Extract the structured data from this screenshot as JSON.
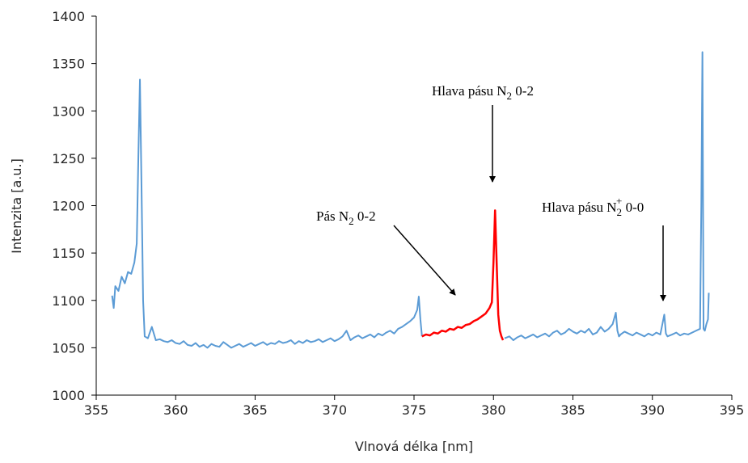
{
  "chart_data": {
    "type": "line",
    "xlabel": "Vlnová délka [nm]",
    "ylabel": "Intenzita [a.u.]",
    "xlim": [
      355,
      395
    ],
    "xticks": [
      355,
      360,
      365,
      370,
      375,
      380,
      385,
      390,
      395
    ],
    "ylim": [
      1000,
      1400
    ],
    "yticks": [
      1000,
      1050,
      1100,
      1150,
      1200,
      1250,
      1300,
      1350,
      1400
    ],
    "grid": false,
    "annotations": [
      {
        "before": "Pás N",
        "sub": "2",
        "after": " 0-2"
      },
      {
        "before": "Hlava pásu N",
        "sub": "2",
        "after": " 0-2"
      },
      {
        "before": "Hlava pásu N",
        "sub": "2",
        "sup": "+",
        "after": " 0-0"
      }
    ],
    "series": [
      {
        "color": "#5b9bd5",
        "x": [
          356.0,
          356.1,
          356.2,
          356.4,
          356.6,
          356.8,
          357.0,
          357.2,
          357.4,
          357.55,
          357.65,
          357.75,
          357.85,
          357.95,
          358.05,
          358.25,
          358.5,
          358.75,
          359.0,
          359.25,
          359.5,
          359.75,
          360.0,
          360.25,
          360.5,
          360.75,
          361.0,
          361.25,
          361.5,
          361.75,
          362.0,
          362.25,
          362.5,
          362.75,
          363.0,
          363.25,
          363.5,
          363.75,
          364.0,
          364.25,
          364.5,
          364.75,
          365.0,
          365.25,
          365.5,
          365.75,
          366.0,
          366.25,
          366.5,
          366.75,
          367.0,
          367.25,
          367.5,
          367.75,
          368.0,
          368.25,
          368.5,
          368.75,
          369.0,
          369.25,
          369.5,
          369.75,
          370.0,
          370.25,
          370.5,
          370.75,
          371.0,
          371.25,
          371.5,
          371.75,
          372.0,
          372.25,
          372.5,
          372.75,
          373.0,
          373.25,
          373.5,
          373.75,
          374.0,
          374.25,
          374.5,
          374.75,
          375.0,
          375.2,
          375.3,
          375.4,
          375.5,
          378.0,
          380.7,
          381.0,
          381.25,
          381.5,
          381.75,
          382.0,
          382.25,
          382.5,
          382.75,
          383.0,
          383.25,
          383.5,
          383.75,
          384.0,
          384.25,
          384.5,
          384.75,
          385.0,
          385.25,
          385.5,
          385.75,
          386.0,
          386.25,
          386.5,
          386.75,
          387.0,
          387.25,
          387.5,
          387.7,
          387.8,
          387.9,
          388.0,
          388.25,
          388.5,
          388.75,
          389.0,
          389.25,
          389.5,
          389.75,
          390.0,
          390.25,
          390.5,
          390.75,
          390.85,
          390.95,
          391.25,
          391.5,
          391.75,
          392.0,
          392.25,
          392.5,
          392.75,
          393.0,
          393.08,
          393.15,
          393.22,
          393.3,
          393.4,
          393.5,
          393.55
        ],
        "values": [
          1105,
          1092,
          1115,
          1110,
          1125,
          1118,
          1130,
          1128,
          1140,
          1160,
          1250,
          1333,
          1220,
          1100,
          1062,
          1060,
          1072,
          1058,
          1059,
          1057,
          1056,
          1058,
          1055,
          1054,
          1057,
          1053,
          1052,
          1055,
          1051,
          1053,
          1050,
          1054,
          1052,
          1051,
          1056,
          1053,
          1050,
          1052,
          1054,
          1051,
          1053,
          1055,
          1052,
          1054,
          1056,
          1053,
          1055,
          1054,
          1057,
          1055,
          1056,
          1058,
          1054,
          1057,
          1055,
          1058,
          1056,
          1057,
          1059,
          1056,
          1058,
          1060,
          1057,
          1059,
          1062,
          1068,
          1058,
          1061,
          1063,
          1060,
          1062,
          1064,
          1061,
          1065,
          1063,
          1066,
          1068,
          1065,
          1070,
          1072,
          1075,
          1078,
          1082,
          1090,
          1104,
          1080,
          1062,
          null,
          1060,
          1062,
          1058,
          1061,
          1063,
          1060,
          1062,
          1064,
          1061,
          1063,
          1065,
          1062,
          1066,
          1068,
          1064,
          1066,
          1070,
          1067,
          1065,
          1068,
          1066,
          1070,
          1064,
          1066,
          1072,
          1067,
          1070,
          1075,
          1087,
          1068,
          1062,
          1064,
          1067,
          1065,
          1063,
          1066,
          1064,
          1062,
          1065,
          1063,
          1066,
          1064,
          1085,
          1065,
          1062,
          1064,
          1066,
          1063,
          1065,
          1064,
          1066,
          1068,
          1070,
          1200,
          1362,
          1070,
          1068,
          1075,
          1080,
          1108
        ]
      },
      {
        "color": "#ff0000",
        "x": [
          375.5,
          375.75,
          376.0,
          376.25,
          376.5,
          376.75,
          377.0,
          377.25,
          377.5,
          377.75,
          378.0,
          378.25,
          378.5,
          378.75,
          379.0,
          379.25,
          379.5,
          379.75,
          379.9,
          380.0,
          380.1,
          380.2,
          380.3,
          380.4,
          380.5,
          380.6
        ],
        "values": [
          1062,
          1064,
          1063,
          1066,
          1065,
          1068,
          1067,
          1070,
          1069,
          1072,
          1071,
          1074,
          1075,
          1078,
          1080,
          1083,
          1086,
          1092,
          1098,
          1140,
          1195,
          1140,
          1085,
          1068,
          1062,
          1058
        ]
      }
    ]
  }
}
